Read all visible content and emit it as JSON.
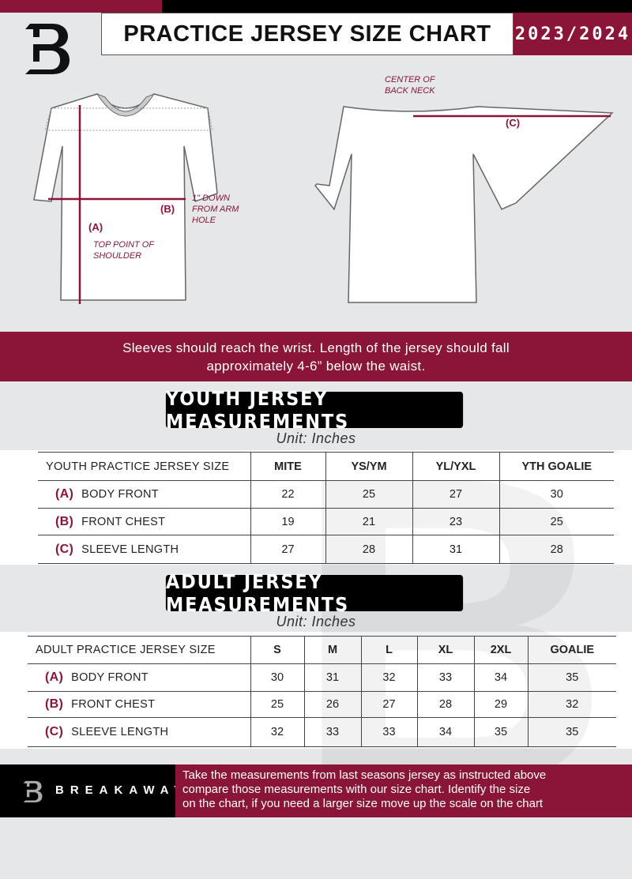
{
  "header": {
    "title": "PRACTICE JERSEY SIZE CHART",
    "season": "2023/2024",
    "logo_letter": "B"
  },
  "diagram": {
    "front_notes": {
      "a_label": "(A)",
      "a_note": "TOP POINT OF SHOULDER",
      "b_label": "(B)",
      "b_note": "1\" DOWN FROM ARM HOLE"
    },
    "back_notes": {
      "c_label": "(C)",
      "c_note": "CENTER OF BACK NECK"
    }
  },
  "banner": {
    "text_line1": "Sleeves should reach the wrist. Length of the jersey should fall",
    "text_line2": "approximately 4-6” below the waist."
  },
  "youth": {
    "title": "YOUTH JERSEY MEASUREMENTS",
    "unit": "Unit: Inches",
    "header": [
      "YOUTH PRACTICE JERSEY SIZE",
      "MITE",
      "YS/YM",
      "YL/YXL",
      "YTH GOALIE"
    ],
    "rows": [
      {
        "letter": "(A)",
        "name": "BODY FRONT",
        "values": [
          "22",
          "25",
          "27",
          "30"
        ]
      },
      {
        "letter": "(B)",
        "name": "FRONT CHEST",
        "values": [
          "19",
          "21",
          "23",
          "25"
        ]
      },
      {
        "letter": "(C)",
        "name": "SLEEVE LENGTH",
        "values": [
          "27",
          "28",
          "31",
          "28"
        ]
      }
    ]
  },
  "adult": {
    "title": "ADULT JERSEY MEASUREMENTS",
    "unit": "Unit: Inches",
    "header": [
      "ADULT PRACTICE JERSEY SIZE",
      "S",
      "M",
      "L",
      "XL",
      "2XL",
      "GOALIE"
    ],
    "rows": [
      {
        "letter": "(A)",
        "name": "BODY FRONT",
        "values": [
          "30",
          "31",
          "32",
          "33",
          "34",
          "35"
        ]
      },
      {
        "letter": "(B)",
        "name": "FRONT CHEST",
        "values": [
          "25",
          "26",
          "27",
          "28",
          "29",
          "32"
        ]
      },
      {
        "letter": "(C)",
        "name": "SLEEVE LENGTH",
        "values": [
          "32",
          "33",
          "33",
          "34",
          "35",
          "35"
        ]
      }
    ]
  },
  "footer": {
    "brand": "BREAKAWAY",
    "text_line1": "Take the measurements from last seasons jersey as instructed above",
    "text_line2": "compare those measurements  with our size chart. Identify the size",
    "text_line3": "on the chart, if you need a larger size move up the scale on the chart"
  },
  "colors": {
    "accent": "#8a1538",
    "dark": "#000000",
    "background": "#e6e7e8"
  }
}
